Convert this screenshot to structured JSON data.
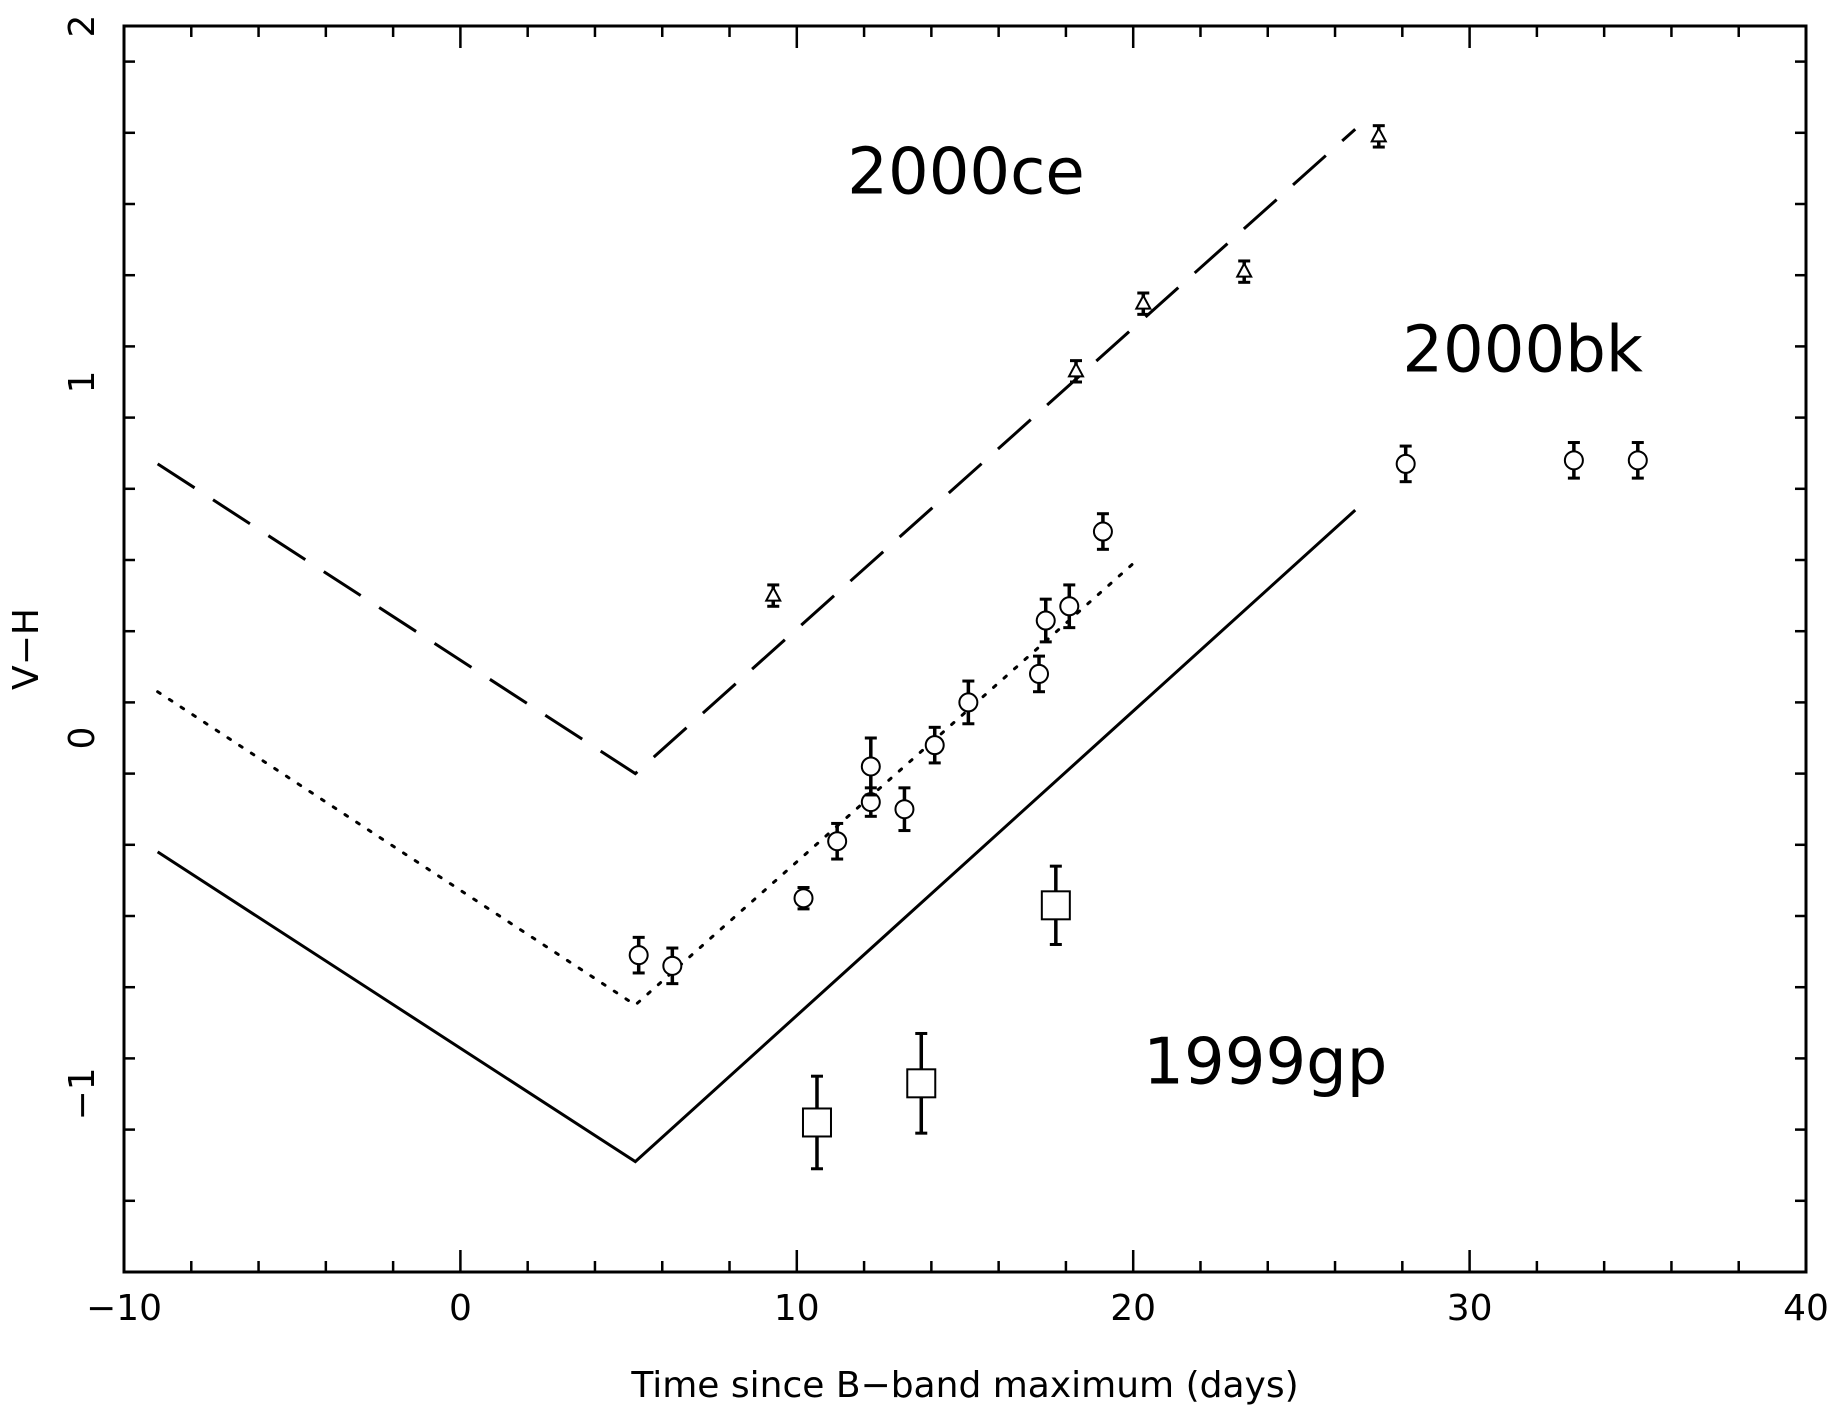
{
  "chart_data": {
    "type": "scatter",
    "xlabel": "Time since B−band maximum (days)",
    "ylabel": "V−H",
    "xlim": [
      -10,
      40
    ],
    "ylim": [
      -1.5,
      2
    ],
    "x_major_ticks": [
      -10,
      0,
      10,
      20,
      30,
      40
    ],
    "x_tick_labels": [
      "−10",
      "0",
      "10",
      "20",
      "30",
      "40"
    ],
    "y_major_ticks": [
      -1,
      0,
      1,
      2
    ],
    "y_tick_labels": [
      "−1",
      "0",
      "1",
      "2"
    ],
    "x_minor_step": 2,
    "y_minor_step": 0.2,
    "grid": false,
    "legend": "none",
    "series": [
      {
        "name": "2000ce",
        "marker": "triangle",
        "points": [
          {
            "x": 9.3,
            "y": 0.4,
            "err": 0.03
          },
          {
            "x": 18.3,
            "y": 1.03,
            "err": 0.03
          },
          {
            "x": 20.3,
            "y": 1.22,
            "err": 0.03
          },
          {
            "x": 23.3,
            "y": 1.31,
            "err": 0.03
          },
          {
            "x": 27.3,
            "y": 1.69,
            "err": 0.03
          }
        ],
        "model": {
          "style": "dashed",
          "x": [
            -9,
            5.2,
            26.6
          ],
          "y": [
            0.77,
            -0.1,
            1.71
          ]
        }
      },
      {
        "name": "2000bk",
        "marker": "circle",
        "points": [
          {
            "x": 5.3,
            "y": -0.61,
            "err": 0.05
          },
          {
            "x": 6.3,
            "y": -0.64,
            "err": 0.05
          },
          {
            "x": 10.2,
            "y": -0.45,
            "err": 0.03
          },
          {
            "x": 11.2,
            "y": -0.29,
            "err": 0.05
          },
          {
            "x": 12.2,
            "y": -0.18,
            "err": 0.04
          },
          {
            "x": 12.2,
            "y": -0.08,
            "err": 0.08
          },
          {
            "x": 13.2,
            "y": -0.2,
            "err": 0.06
          },
          {
            "x": 14.1,
            "y": -0.02,
            "err": 0.05
          },
          {
            "x": 15.1,
            "y": 0.1,
            "err": 0.06
          },
          {
            "x": 17.2,
            "y": 0.18,
            "err": 0.05
          },
          {
            "x": 17.4,
            "y": 0.33,
            "err": 0.06
          },
          {
            "x": 18.1,
            "y": 0.37,
            "err": 0.06
          },
          {
            "x": 19.1,
            "y": 0.58,
            "err": 0.05
          },
          {
            "x": 28.1,
            "y": 0.77,
            "err": 0.05
          },
          {
            "x": 33.1,
            "y": 0.78,
            "err": 0.05
          },
          {
            "x": 35.0,
            "y": 0.78,
            "err": 0.05
          }
        ],
        "model": {
          "style": "dotted",
          "x": [
            -9,
            5.2,
            20.0
          ],
          "y": [
            0.13,
            -0.75,
            0.49
          ]
        }
      },
      {
        "name": "1999gp",
        "marker": "square",
        "points": [
          {
            "x": 10.6,
            "y": -1.08,
            "err": 0.13
          },
          {
            "x": 13.7,
            "y": -0.97,
            "err": 0.14
          },
          {
            "x": 17.7,
            "y": -0.47,
            "err": 0.11
          }
        ],
        "model": {
          "style": "solid",
          "x": [
            -9,
            5.2,
            26.6
          ],
          "y": [
            -0.32,
            -1.19,
            0.64
          ]
        }
      }
    ],
    "annotations": [
      {
        "text": "2000ce",
        "x": 11.5,
        "y": 1.53
      },
      {
        "text": "2000bk",
        "x": 28.0,
        "y": 1.03
      },
      {
        "text": "1999gp",
        "x": 20.3,
        "y": -0.97
      }
    ]
  }
}
